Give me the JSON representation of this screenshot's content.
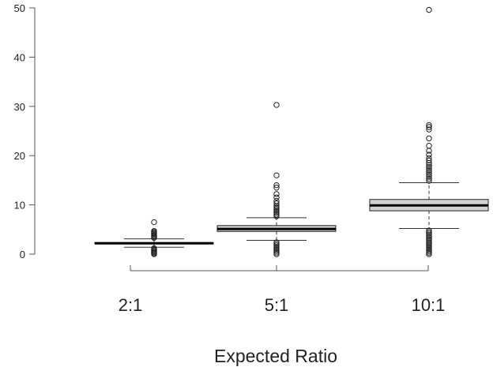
{
  "chart_data": {
    "type": "box",
    "title": "",
    "xlabel": "Expected Ratio",
    "ylabel": "",
    "ylim": [
      0,
      50
    ],
    "yticks": [
      0,
      10,
      20,
      30,
      40,
      50
    ],
    "categories": [
      "2:1",
      "5:1",
      "10:1"
    ],
    "boxes": [
      {
        "category": "2:1",
        "whisker_low": 1.4,
        "q1": 2.1,
        "median": 2.2,
        "q3": 2.35,
        "whisker_high": 3.1,
        "outliers": [
          0.0,
          0.2,
          0.4,
          0.6,
          0.8,
          1.0,
          1.2,
          3.3,
          3.5,
          3.7,
          3.9,
          4.1,
          4.3,
          4.5,
          4.7,
          6.5
        ]
      },
      {
        "category": "5:1",
        "whisker_low": 2.8,
        "q1": 4.6,
        "median": 5.1,
        "q3": 5.8,
        "whisker_high": 7.4,
        "outliers": [
          0.0,
          0.3,
          0.6,
          0.9,
          1.2,
          1.5,
          1.8,
          2.1,
          2.4,
          7.7,
          8.0,
          8.3,
          8.6,
          8.9,
          9.2,
          9.5,
          9.8,
          10.3,
          10.8,
          11.5,
          12.2,
          13.5,
          14.0,
          16.0,
          30.3
        ]
      },
      {
        "category": "10:1",
        "whisker_low": 5.2,
        "q1": 8.8,
        "median": 9.9,
        "q3": 11.1,
        "whisker_high": 14.5,
        "outliers": [
          0.0,
          0.3,
          0.6,
          0.9,
          1.2,
          1.5,
          1.8,
          2.1,
          2.4,
          2.7,
          3.0,
          3.3,
          3.6,
          3.9,
          4.2,
          4.5,
          4.8,
          14.9,
          15.3,
          15.7,
          16.1,
          16.5,
          16.9,
          17.3,
          17.7,
          18.1,
          18.5,
          19.0,
          19.5,
          20.2,
          21.0,
          22.0,
          23.5,
          25.3,
          25.8,
          26.2,
          49.6
        ]
      }
    ]
  }
}
